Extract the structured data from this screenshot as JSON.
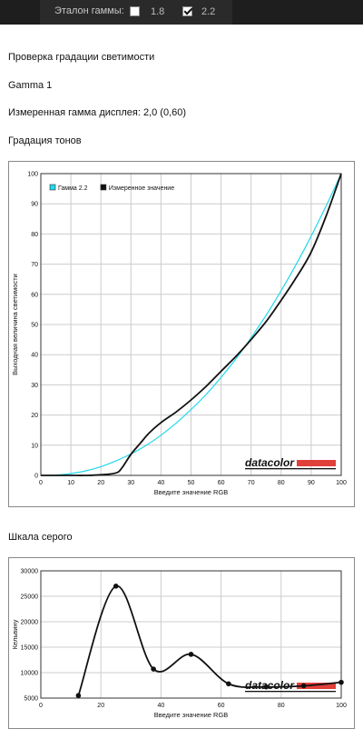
{
  "header": {
    "label": "Эталон гаммы:",
    "options": [
      {
        "value": "1.8",
        "checked": false
      },
      {
        "value": "2.2",
        "checked": true
      }
    ]
  },
  "texts": {
    "title": "Проверка градации светимости",
    "subtitle": "Gamma 1",
    "measured": "Измеренная гамма дисплея: 2,0 (0,60)",
    "tone_section": "Градация тонов",
    "gray_section": "Шкала серого"
  },
  "chart_data": [
    {
      "type": "line",
      "xlabel": "Введите значение RGB",
      "ylabel": "Выходная величина светимости",
      "xlim": [
        0,
        100
      ],
      "ylim": [
        0,
        100
      ],
      "xticks": [
        0,
        10,
        20,
        30,
        40,
        50,
        60,
        70,
        80,
        90,
        100
      ],
      "yticks": [
        0,
        10,
        20,
        30,
        40,
        50,
        60,
        70,
        80,
        90,
        100
      ],
      "grid": true,
      "legend": "top-left",
      "series": [
        {
          "name": "Гамма 2.2",
          "color": "#22d8ea",
          "x": [
            0,
            5,
            10,
            15,
            20,
            25,
            30,
            35,
            40,
            45,
            50,
            55,
            60,
            65,
            70,
            75,
            80,
            85,
            90,
            95,
            100
          ],
          "y": [
            0,
            0.1,
            0.6,
            1.5,
            2.9,
            4.8,
            7.1,
            9.9,
            13.3,
            17.3,
            21.8,
            26.8,
            32.5,
            38.7,
            45.6,
            53.1,
            61.2,
            69.9,
            79.3,
            89.3,
            100
          ]
        },
        {
          "name": "Измеренное значение",
          "color": "#111111",
          "x": [
            0,
            5,
            10,
            15,
            20,
            25,
            27,
            30,
            33,
            36,
            40,
            45,
            50,
            55,
            60,
            65,
            70,
            75,
            80,
            85,
            90,
            95,
            100
          ],
          "y": [
            0,
            0,
            0,
            0,
            0.2,
            0.8,
            2.5,
            7,
            10.5,
            14,
            17.5,
            21,
            25,
            29.5,
            34.5,
            39.5,
            45,
            51,
            58,
            65.5,
            74,
            86,
            100
          ]
        }
      ],
      "watermark": "datacolor"
    },
    {
      "type": "line",
      "xlabel": "Введите значение RGB",
      "ylabel": "Кельвину",
      "xlim": [
        0,
        100
      ],
      "ylim": [
        5000,
        30000
      ],
      "xticks": [
        0,
        20,
        40,
        60,
        80,
        100
      ],
      "yticks": [
        5000,
        10000,
        15000,
        20000,
        25000,
        30000
      ],
      "grid": true,
      "series": [
        {
          "name": "",
          "color": "#111111",
          "x": [
            12.5,
            25,
            37.5,
            50,
            62.5,
            75,
            87.5,
            100
          ],
          "y": [
            5500,
            27000,
            10700,
            13600,
            7800,
            7200,
            7400,
            8100
          ]
        }
      ],
      "watermark": "datacolor"
    }
  ]
}
